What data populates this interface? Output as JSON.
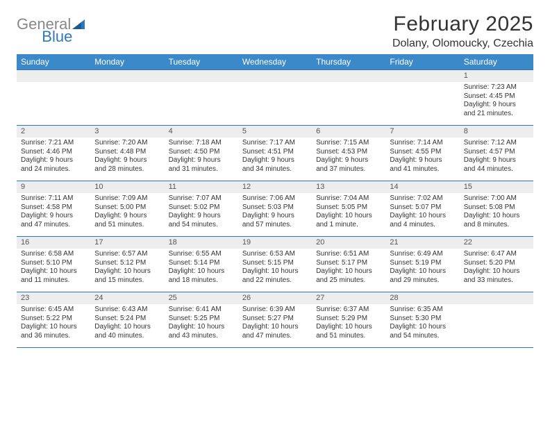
{
  "brand": {
    "text_general": "General",
    "text_blue": "Blue",
    "general_color": "#888888",
    "blue_color": "#2f77bb",
    "icon_color": "#2f77bb"
  },
  "title": "February 2025",
  "location": "Dolany, Olomoucky, Czechia",
  "colors": {
    "header_bg": "#3b89c9",
    "header_text": "#ffffff",
    "row_divider": "#2f77bb",
    "daynum_bg": "#ededed",
    "text": "#333333"
  },
  "weekdays": [
    "Sunday",
    "Monday",
    "Tuesday",
    "Wednesday",
    "Thursday",
    "Friday",
    "Saturday"
  ],
  "weeks": [
    [
      {
        "num": "",
        "lines": [
          "",
          "",
          "",
          ""
        ]
      },
      {
        "num": "",
        "lines": [
          "",
          "",
          "",
          ""
        ]
      },
      {
        "num": "",
        "lines": [
          "",
          "",
          "",
          ""
        ]
      },
      {
        "num": "",
        "lines": [
          "",
          "",
          "",
          ""
        ]
      },
      {
        "num": "",
        "lines": [
          "",
          "",
          "",
          ""
        ]
      },
      {
        "num": "",
        "lines": [
          "",
          "",
          "",
          ""
        ]
      },
      {
        "num": "1",
        "lines": [
          "Sunrise: 7:23 AM",
          "Sunset: 4:45 PM",
          "Daylight: 9 hours",
          "and 21 minutes."
        ]
      }
    ],
    [
      {
        "num": "2",
        "lines": [
          "Sunrise: 7:21 AM",
          "Sunset: 4:46 PM",
          "Daylight: 9 hours",
          "and 24 minutes."
        ]
      },
      {
        "num": "3",
        "lines": [
          "Sunrise: 7:20 AM",
          "Sunset: 4:48 PM",
          "Daylight: 9 hours",
          "and 28 minutes."
        ]
      },
      {
        "num": "4",
        "lines": [
          "Sunrise: 7:18 AM",
          "Sunset: 4:50 PM",
          "Daylight: 9 hours",
          "and 31 minutes."
        ]
      },
      {
        "num": "5",
        "lines": [
          "Sunrise: 7:17 AM",
          "Sunset: 4:51 PM",
          "Daylight: 9 hours",
          "and 34 minutes."
        ]
      },
      {
        "num": "6",
        "lines": [
          "Sunrise: 7:15 AM",
          "Sunset: 4:53 PM",
          "Daylight: 9 hours",
          "and 37 minutes."
        ]
      },
      {
        "num": "7",
        "lines": [
          "Sunrise: 7:14 AM",
          "Sunset: 4:55 PM",
          "Daylight: 9 hours",
          "and 41 minutes."
        ]
      },
      {
        "num": "8",
        "lines": [
          "Sunrise: 7:12 AM",
          "Sunset: 4:57 PM",
          "Daylight: 9 hours",
          "and 44 minutes."
        ]
      }
    ],
    [
      {
        "num": "9",
        "lines": [
          "Sunrise: 7:11 AM",
          "Sunset: 4:58 PM",
          "Daylight: 9 hours",
          "and 47 minutes."
        ]
      },
      {
        "num": "10",
        "lines": [
          "Sunrise: 7:09 AM",
          "Sunset: 5:00 PM",
          "Daylight: 9 hours",
          "and 51 minutes."
        ]
      },
      {
        "num": "11",
        "lines": [
          "Sunrise: 7:07 AM",
          "Sunset: 5:02 PM",
          "Daylight: 9 hours",
          "and 54 minutes."
        ]
      },
      {
        "num": "12",
        "lines": [
          "Sunrise: 7:06 AM",
          "Sunset: 5:03 PM",
          "Daylight: 9 hours",
          "and 57 minutes."
        ]
      },
      {
        "num": "13",
        "lines": [
          "Sunrise: 7:04 AM",
          "Sunset: 5:05 PM",
          "Daylight: 10 hours",
          "and 1 minute."
        ]
      },
      {
        "num": "14",
        "lines": [
          "Sunrise: 7:02 AM",
          "Sunset: 5:07 PM",
          "Daylight: 10 hours",
          "and 4 minutes."
        ]
      },
      {
        "num": "15",
        "lines": [
          "Sunrise: 7:00 AM",
          "Sunset: 5:08 PM",
          "Daylight: 10 hours",
          "and 8 minutes."
        ]
      }
    ],
    [
      {
        "num": "16",
        "lines": [
          "Sunrise: 6:58 AM",
          "Sunset: 5:10 PM",
          "Daylight: 10 hours",
          "and 11 minutes."
        ]
      },
      {
        "num": "17",
        "lines": [
          "Sunrise: 6:57 AM",
          "Sunset: 5:12 PM",
          "Daylight: 10 hours",
          "and 15 minutes."
        ]
      },
      {
        "num": "18",
        "lines": [
          "Sunrise: 6:55 AM",
          "Sunset: 5:14 PM",
          "Daylight: 10 hours",
          "and 18 minutes."
        ]
      },
      {
        "num": "19",
        "lines": [
          "Sunrise: 6:53 AM",
          "Sunset: 5:15 PM",
          "Daylight: 10 hours",
          "and 22 minutes."
        ]
      },
      {
        "num": "20",
        "lines": [
          "Sunrise: 6:51 AM",
          "Sunset: 5:17 PM",
          "Daylight: 10 hours",
          "and 25 minutes."
        ]
      },
      {
        "num": "21",
        "lines": [
          "Sunrise: 6:49 AM",
          "Sunset: 5:19 PM",
          "Daylight: 10 hours",
          "and 29 minutes."
        ]
      },
      {
        "num": "22",
        "lines": [
          "Sunrise: 6:47 AM",
          "Sunset: 5:20 PM",
          "Daylight: 10 hours",
          "and 33 minutes."
        ]
      }
    ],
    [
      {
        "num": "23",
        "lines": [
          "Sunrise: 6:45 AM",
          "Sunset: 5:22 PM",
          "Daylight: 10 hours",
          "and 36 minutes."
        ]
      },
      {
        "num": "24",
        "lines": [
          "Sunrise: 6:43 AM",
          "Sunset: 5:24 PM",
          "Daylight: 10 hours",
          "and 40 minutes."
        ]
      },
      {
        "num": "25",
        "lines": [
          "Sunrise: 6:41 AM",
          "Sunset: 5:25 PM",
          "Daylight: 10 hours",
          "and 43 minutes."
        ]
      },
      {
        "num": "26",
        "lines": [
          "Sunrise: 6:39 AM",
          "Sunset: 5:27 PM",
          "Daylight: 10 hours",
          "and 47 minutes."
        ]
      },
      {
        "num": "27",
        "lines": [
          "Sunrise: 6:37 AM",
          "Sunset: 5:29 PM",
          "Daylight: 10 hours",
          "and 51 minutes."
        ]
      },
      {
        "num": "28",
        "lines": [
          "Sunrise: 6:35 AM",
          "Sunset: 5:30 PM",
          "Daylight: 10 hours",
          "and 54 minutes."
        ]
      },
      {
        "num": "",
        "lines": [
          "",
          "",
          "",
          ""
        ]
      }
    ]
  ]
}
